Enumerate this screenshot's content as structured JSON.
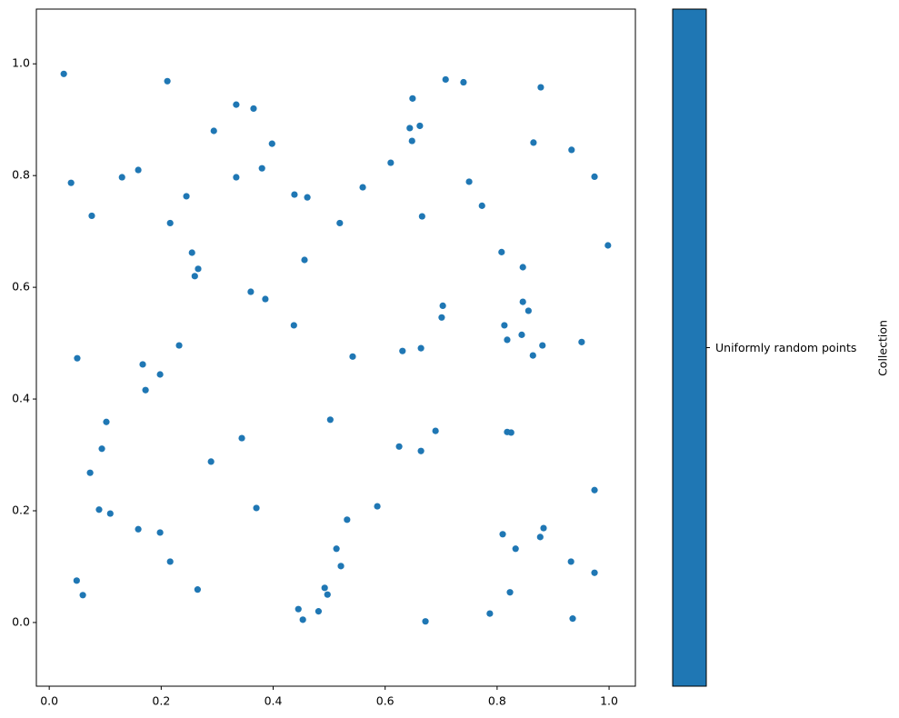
{
  "chart_data": {
    "type": "scatter",
    "series": [
      {
        "name": "Uniformly random points",
        "color": "#1f77b4",
        "x": [
          0.026,
          0.039,
          0.076,
          0.13,
          0.159,
          0.211,
          0.216,
          0.245,
          0.294,
          0.334,
          0.365,
          0.334,
          0.38,
          0.398,
          0.255,
          0.266,
          0.26,
          0.36,
          0.386,
          0.438,
          0.461,
          0.456,
          0.437,
          0.519,
          0.56,
          0.61,
          0.649,
          0.644,
          0.662,
          0.648,
          0.708,
          0.74,
          0.75,
          0.773,
          0.666,
          0.865,
          0.933,
          0.974,
          0.998,
          0.878,
          0.808,
          0.846,
          0.846,
          0.856,
          0.813,
          0.818,
          0.844,
          0.881,
          0.864,
          0.951,
          0.703,
          0.701,
          0.664,
          0.631,
          0.542,
          0.05,
          0.232,
          0.167,
          0.198,
          0.172,
          0.102,
          0.094,
          0.073,
          0.089,
          0.109,
          0.159,
          0.198,
          0.216,
          0.049,
          0.06,
          0.265,
          0.289,
          0.344,
          0.37,
          0.502,
          0.586,
          0.532,
          0.513,
          0.521,
          0.492,
          0.497,
          0.481,
          0.445,
          0.453,
          0.672,
          0.625,
          0.664,
          0.69,
          0.818,
          0.825,
          0.974,
          0.81,
          0.833,
          0.883,
          0.877,
          0.932,
          0.974,
          0.823,
          0.787,
          0.935
        ],
        "values": [
          0.982,
          0.787,
          0.728,
          0.797,
          0.81,
          0.969,
          0.715,
          0.763,
          0.88,
          0.927,
          0.92,
          0.797,
          0.813,
          0.857,
          0.662,
          0.633,
          0.62,
          0.592,
          0.579,
          0.766,
          0.761,
          0.649,
          0.532,
          0.715,
          0.779,
          0.823,
          0.938,
          0.885,
          0.889,
          0.862,
          0.972,
          0.967,
          0.789,
          0.746,
          0.727,
          0.859,
          0.846,
          0.798,
          0.675,
          0.958,
          0.663,
          0.636,
          0.574,
          0.558,
          0.532,
          0.506,
          0.515,
          0.496,
          0.478,
          0.502,
          0.567,
          0.546,
          0.491,
          0.486,
          0.476,
          0.473,
          0.496,
          0.462,
          0.444,
          0.416,
          0.359,
          0.311,
          0.268,
          0.202,
          0.195,
          0.167,
          0.161,
          0.109,
          0.075,
          0.049,
          0.059,
          0.288,
          0.33,
          0.205,
          0.363,
          0.208,
          0.184,
          0.132,
          0.101,
          0.062,
          0.05,
          0.02,
          0.024,
          0.005,
          0.002,
          0.315,
          0.307,
          0.343,
          0.341,
          0.34,
          0.237,
          0.158,
          0.132,
          0.169,
          0.153,
          0.109,
          0.089,
          0.054,
          0.016,
          0.007
        ]
      }
    ],
    "xlim": [
      -0.023,
      1.047
    ],
    "ylim": [
      -0.114,
      1.098
    ],
    "xticks": [
      {
        "value": 0,
        "label": "0.0"
      },
      0.2,
      0.4,
      0.6,
      0.8,
      {
        "value": 1,
        "label": "1.0"
      }
    ],
    "yticks": [
      {
        "value": 0,
        "label": "0.0"
      },
      0.2,
      0.4,
      0.6,
      0.8,
      {
        "value": 1,
        "label": "1.0"
      }
    ],
    "colorbar": {
      "label": "Collection"
    }
  }
}
